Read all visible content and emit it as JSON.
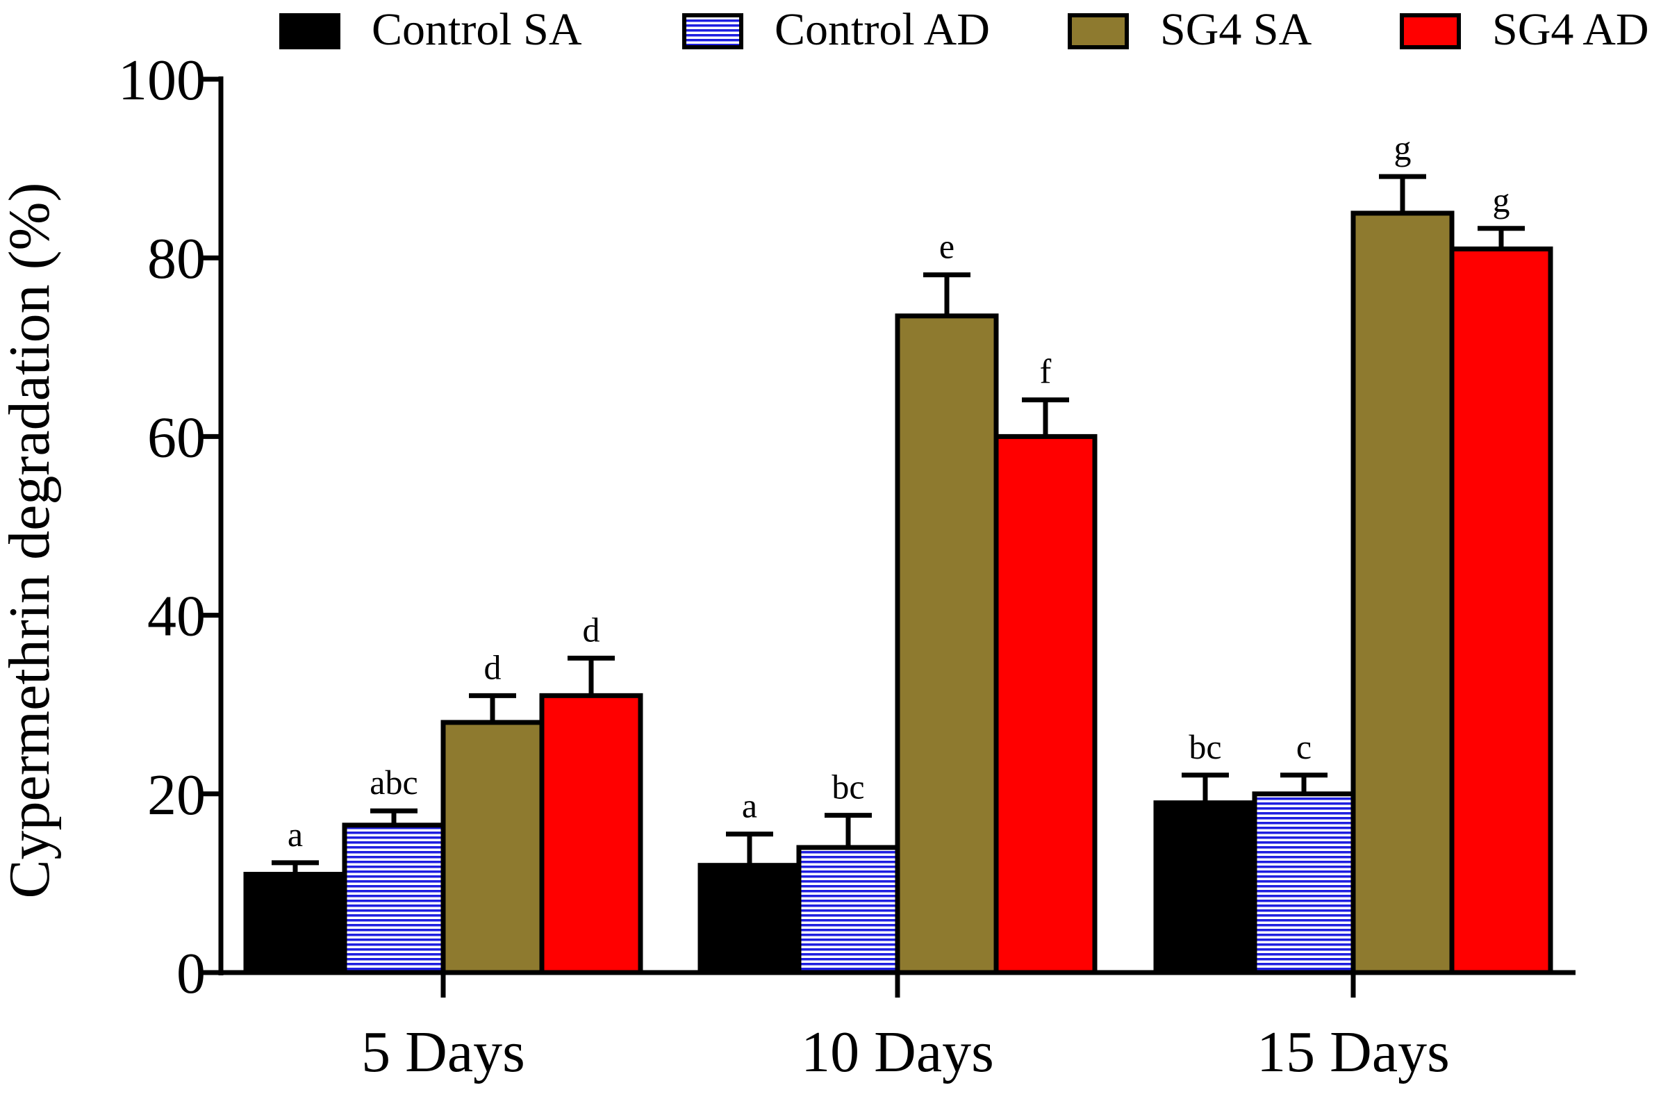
{
  "chart_data": {
    "type": "bar",
    "title": "",
    "xlabel": "",
    "ylabel": "Cypermethrin degradation (%)",
    "ylim": [
      0,
      100
    ],
    "yticks": [
      0,
      20,
      40,
      60,
      80,
      100
    ],
    "categories": [
      "5 Days",
      "10 Days",
      "15 Days"
    ],
    "series": [
      {
        "name": "Control SA",
        "color": "#000000",
        "pattern": "solid",
        "values": [
          11,
          12,
          19
        ],
        "errors": [
          1.3,
          3.5,
          3.1
        ],
        "letters": [
          "a",
          "a",
          "bc"
        ]
      },
      {
        "name": "Control AD",
        "color": "#1f1fe0",
        "pattern": "horizontal-stripes",
        "values": [
          16.5,
          14,
          20
        ],
        "errors": [
          1.6,
          3.6,
          2.1
        ],
        "letters": [
          "abc",
          "bc",
          "c"
        ]
      },
      {
        "name": "SG4 SA",
        "color": "#8e7a2f",
        "pattern": "solid",
        "values": [
          28,
          73.5,
          85
        ],
        "errors": [
          3.0,
          4.6,
          4.1
        ],
        "letters": [
          "d",
          "e",
          "g"
        ]
      },
      {
        "name": "SG4 AD",
        "color": "#ff0000",
        "pattern": "solid",
        "values": [
          31,
          60,
          81
        ],
        "errors": [
          4.2,
          4.1,
          2.3
        ],
        "letters": [
          "d",
          "f",
          "g"
        ]
      }
    ],
    "legend": "top"
  }
}
